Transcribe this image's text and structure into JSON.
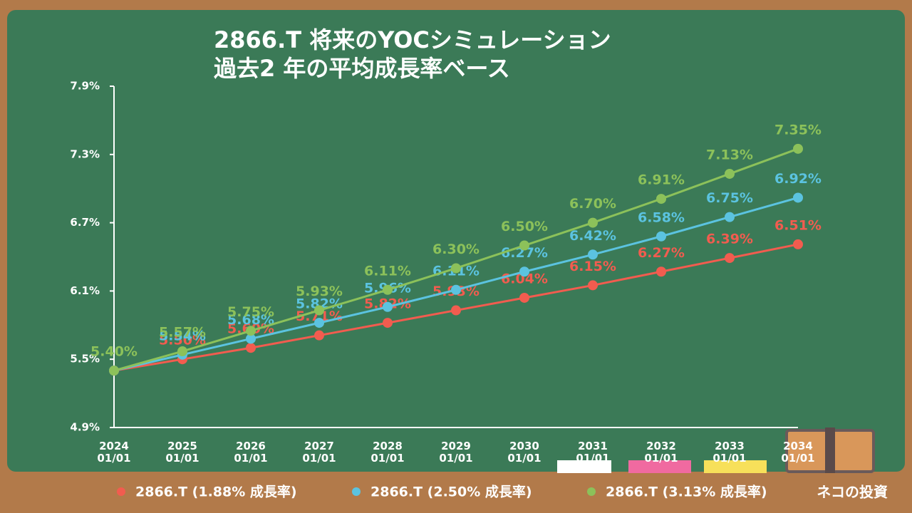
{
  "chart_data": {
    "type": "line",
    "title": "2866.T 将来のYOCシミュレーション",
    "subtitle": "過去2 年の平均成長率ベース",
    "categories": [
      "2024\n01/01",
      "2025\n01/01",
      "2026\n01/01",
      "2027\n01/01",
      "2028\n01/01",
      "2029\n01/01",
      "2030\n01/01",
      "2031\n01/01",
      "2032\n01/01",
      "2033\n01/01",
      "2034\n01/01"
    ],
    "ylim": [
      4.9,
      7.9
    ],
    "yticks": [
      {
        "value": 4.9,
        "label": "4.9%"
      },
      {
        "value": 5.5,
        "label": "5.5%"
      },
      {
        "value": 6.1,
        "label": "6.1%"
      },
      {
        "value": 6.7,
        "label": "6.7%"
      },
      {
        "value": 7.3,
        "label": "7.3%"
      },
      {
        "value": 7.9,
        "label": "7.9%"
      }
    ],
    "legend": "bottom",
    "series": [
      {
        "name": "2866.T (1.88% 成長率)",
        "color": "#f25c4f",
        "values": [
          5.4,
          5.5,
          5.6,
          5.71,
          5.82,
          5.93,
          6.04,
          6.15,
          6.27,
          6.39,
          6.51
        ],
        "value_labels": [
          null,
          "5.50%",
          "5.60%",
          "5.71%",
          "5.82%",
          "5.93%",
          "6.04%",
          "6.15%",
          "6.27%",
          "6.39%",
          "6.51%"
        ]
      },
      {
        "name": "2866.T (2.50% 成長率)",
        "color": "#5bc3e0",
        "values": [
          5.4,
          5.54,
          5.68,
          5.82,
          5.96,
          6.11,
          6.27,
          6.42,
          6.58,
          6.75,
          6.92
        ],
        "value_labels": [
          null,
          "5.54%",
          "5.68%",
          "5.82%",
          "5.96%",
          "6.11%",
          "6.27%",
          "6.42%",
          "6.58%",
          "6.75%",
          "6.92%"
        ]
      },
      {
        "name": "2866.T (3.13% 成長率)",
        "color": "#8cc15a",
        "values": [
          5.4,
          5.57,
          5.75,
          5.93,
          6.11,
          6.3,
          6.5,
          6.7,
          6.91,
          7.13,
          7.35
        ],
        "value_labels": [
          "5.40%",
          "5.57%",
          "5.75%",
          "5.93%",
          "6.11%",
          "6.30%",
          "6.50%",
          "6.70%",
          "6.91%",
          "7.13%",
          "7.35%"
        ]
      }
    ]
  },
  "branding": {
    "text": "ネコの投資"
  }
}
